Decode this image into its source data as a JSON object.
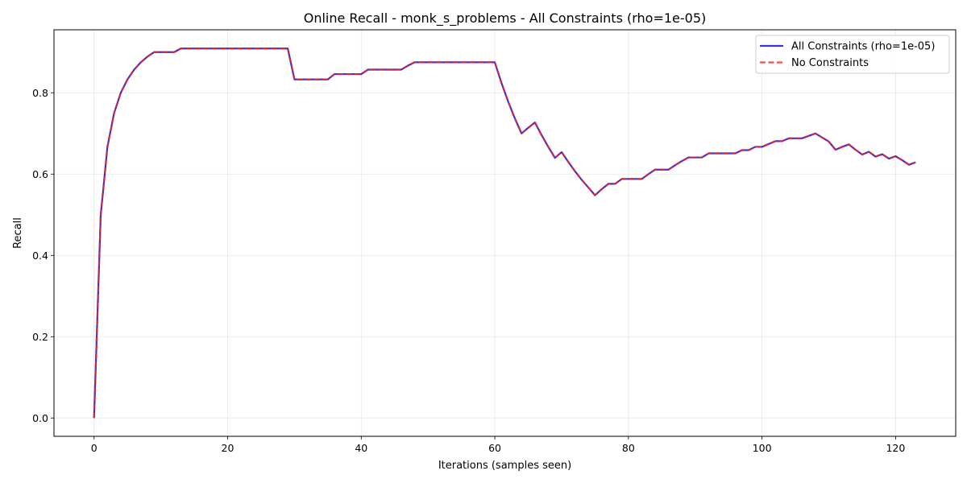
{
  "chart_data": {
    "type": "line",
    "title": "Online Recall - monk_s_problems - All Constraints (rho=1e-05)",
    "xlabel": "Iterations (samples seen)",
    "ylabel": "Recall",
    "xlim": [
      -6,
      129
    ],
    "ylim": [
      -0.045,
      0.955
    ],
    "xticks": [
      0,
      20,
      40,
      60,
      80,
      100,
      120
    ],
    "yticks": [
      0.0,
      0.2,
      0.4,
      0.6,
      0.8
    ],
    "xtick_labels": [
      "0",
      "20",
      "40",
      "60",
      "80",
      "100",
      "120"
    ],
    "ytick_labels": [
      "0.0",
      "0.2",
      "0.4",
      "0.6",
      "0.8"
    ],
    "grid": true,
    "legend_position": "top-right",
    "x": [
      0,
      1,
      2,
      3,
      4,
      5,
      6,
      7,
      8,
      9,
      10,
      11,
      12,
      13,
      14,
      15,
      16,
      17,
      18,
      19,
      20,
      21,
      22,
      23,
      24,
      25,
      26,
      27,
      28,
      29,
      30,
      31,
      32,
      33,
      34,
      35,
      36,
      37,
      38,
      39,
      40,
      41,
      42,
      43,
      44,
      45,
      46,
      47,
      48,
      49,
      50,
      51,
      52,
      53,
      54,
      55,
      56,
      57,
      58,
      59,
      60,
      61,
      62,
      63,
      64,
      65,
      66,
      67,
      68,
      69,
      70,
      71,
      72,
      73,
      74,
      75,
      76,
      77,
      78,
      79,
      80,
      81,
      82,
      83,
      84,
      85,
      86,
      87,
      88,
      89,
      90,
      91,
      92,
      93,
      94,
      95,
      96,
      97,
      98,
      99,
      100,
      101,
      102,
      103,
      104,
      105,
      106,
      107,
      108,
      109,
      110,
      111,
      112,
      113,
      114,
      115,
      116,
      117,
      118,
      119,
      120,
      121,
      122,
      123
    ],
    "series": [
      {
        "name": "All Constraints (rho=1e-05)",
        "color": "#0000dd",
        "style": "solid",
        "values": [
          0.0,
          0.5,
          0.667,
          0.75,
          0.8,
          0.833,
          0.857,
          0.875,
          0.889,
          0.9,
          0.9,
          0.9,
          0.9,
          0.909,
          0.909,
          0.909,
          0.909,
          0.909,
          0.909,
          0.909,
          0.909,
          0.909,
          0.909,
          0.909,
          0.909,
          0.909,
          0.909,
          0.909,
          0.909,
          0.909,
          0.833,
          0.833,
          0.833,
          0.833,
          0.833,
          0.833,
          0.846,
          0.846,
          0.846,
          0.846,
          0.846,
          0.857,
          0.857,
          0.857,
          0.857,
          0.857,
          0.857,
          0.867,
          0.875,
          0.875,
          0.875,
          0.875,
          0.875,
          0.875,
          0.875,
          0.875,
          0.875,
          0.875,
          0.875,
          0.875,
          0.875,
          0.824,
          0.778,
          0.737,
          0.7,
          0.714,
          0.727,
          0.696,
          0.667,
          0.64,
          0.654,
          0.63,
          0.607,
          0.586,
          0.567,
          0.548,
          0.563,
          0.576,
          0.576,
          0.588,
          0.588,
          0.588,
          0.588,
          0.6,
          0.611,
          0.611,
          0.611,
          0.622,
          0.632,
          0.641,
          0.641,
          0.641,
          0.651,
          0.651,
          0.651,
          0.651,
          0.651,
          0.659,
          0.659,
          0.667,
          0.667,
          0.674,
          0.681,
          0.681,
          0.688,
          0.688,
          0.688,
          0.694,
          0.7,
          0.69,
          0.68,
          0.66,
          0.667,
          0.673,
          0.66,
          0.648,
          0.655,
          0.643,
          0.649,
          0.638,
          0.644,
          0.634,
          0.623,
          0.629
        ]
      },
      {
        "name": "No Constraints",
        "color": "#ee2222",
        "style": "dashed",
        "values": [
          0.0,
          0.5,
          0.667,
          0.75,
          0.8,
          0.833,
          0.857,
          0.875,
          0.889,
          0.9,
          0.9,
          0.9,
          0.9,
          0.909,
          0.909,
          0.909,
          0.909,
          0.909,
          0.909,
          0.909,
          0.909,
          0.909,
          0.909,
          0.909,
          0.909,
          0.909,
          0.909,
          0.909,
          0.909,
          0.909,
          0.833,
          0.833,
          0.833,
          0.833,
          0.833,
          0.833,
          0.846,
          0.846,
          0.846,
          0.846,
          0.846,
          0.857,
          0.857,
          0.857,
          0.857,
          0.857,
          0.857,
          0.867,
          0.875,
          0.875,
          0.875,
          0.875,
          0.875,
          0.875,
          0.875,
          0.875,
          0.875,
          0.875,
          0.875,
          0.875,
          0.875,
          0.824,
          0.778,
          0.737,
          0.7,
          0.714,
          0.727,
          0.696,
          0.667,
          0.64,
          0.654,
          0.63,
          0.607,
          0.586,
          0.567,
          0.548,
          0.563,
          0.576,
          0.576,
          0.588,
          0.588,
          0.588,
          0.588,
          0.6,
          0.611,
          0.611,
          0.611,
          0.622,
          0.632,
          0.641,
          0.641,
          0.641,
          0.651,
          0.651,
          0.651,
          0.651,
          0.651,
          0.659,
          0.659,
          0.667,
          0.667,
          0.674,
          0.681,
          0.681,
          0.688,
          0.688,
          0.688,
          0.694,
          0.7,
          0.69,
          0.68,
          0.66,
          0.667,
          0.673,
          0.66,
          0.648,
          0.655,
          0.643,
          0.649,
          0.638,
          0.644,
          0.634,
          0.623,
          0.629
        ]
      }
    ]
  }
}
